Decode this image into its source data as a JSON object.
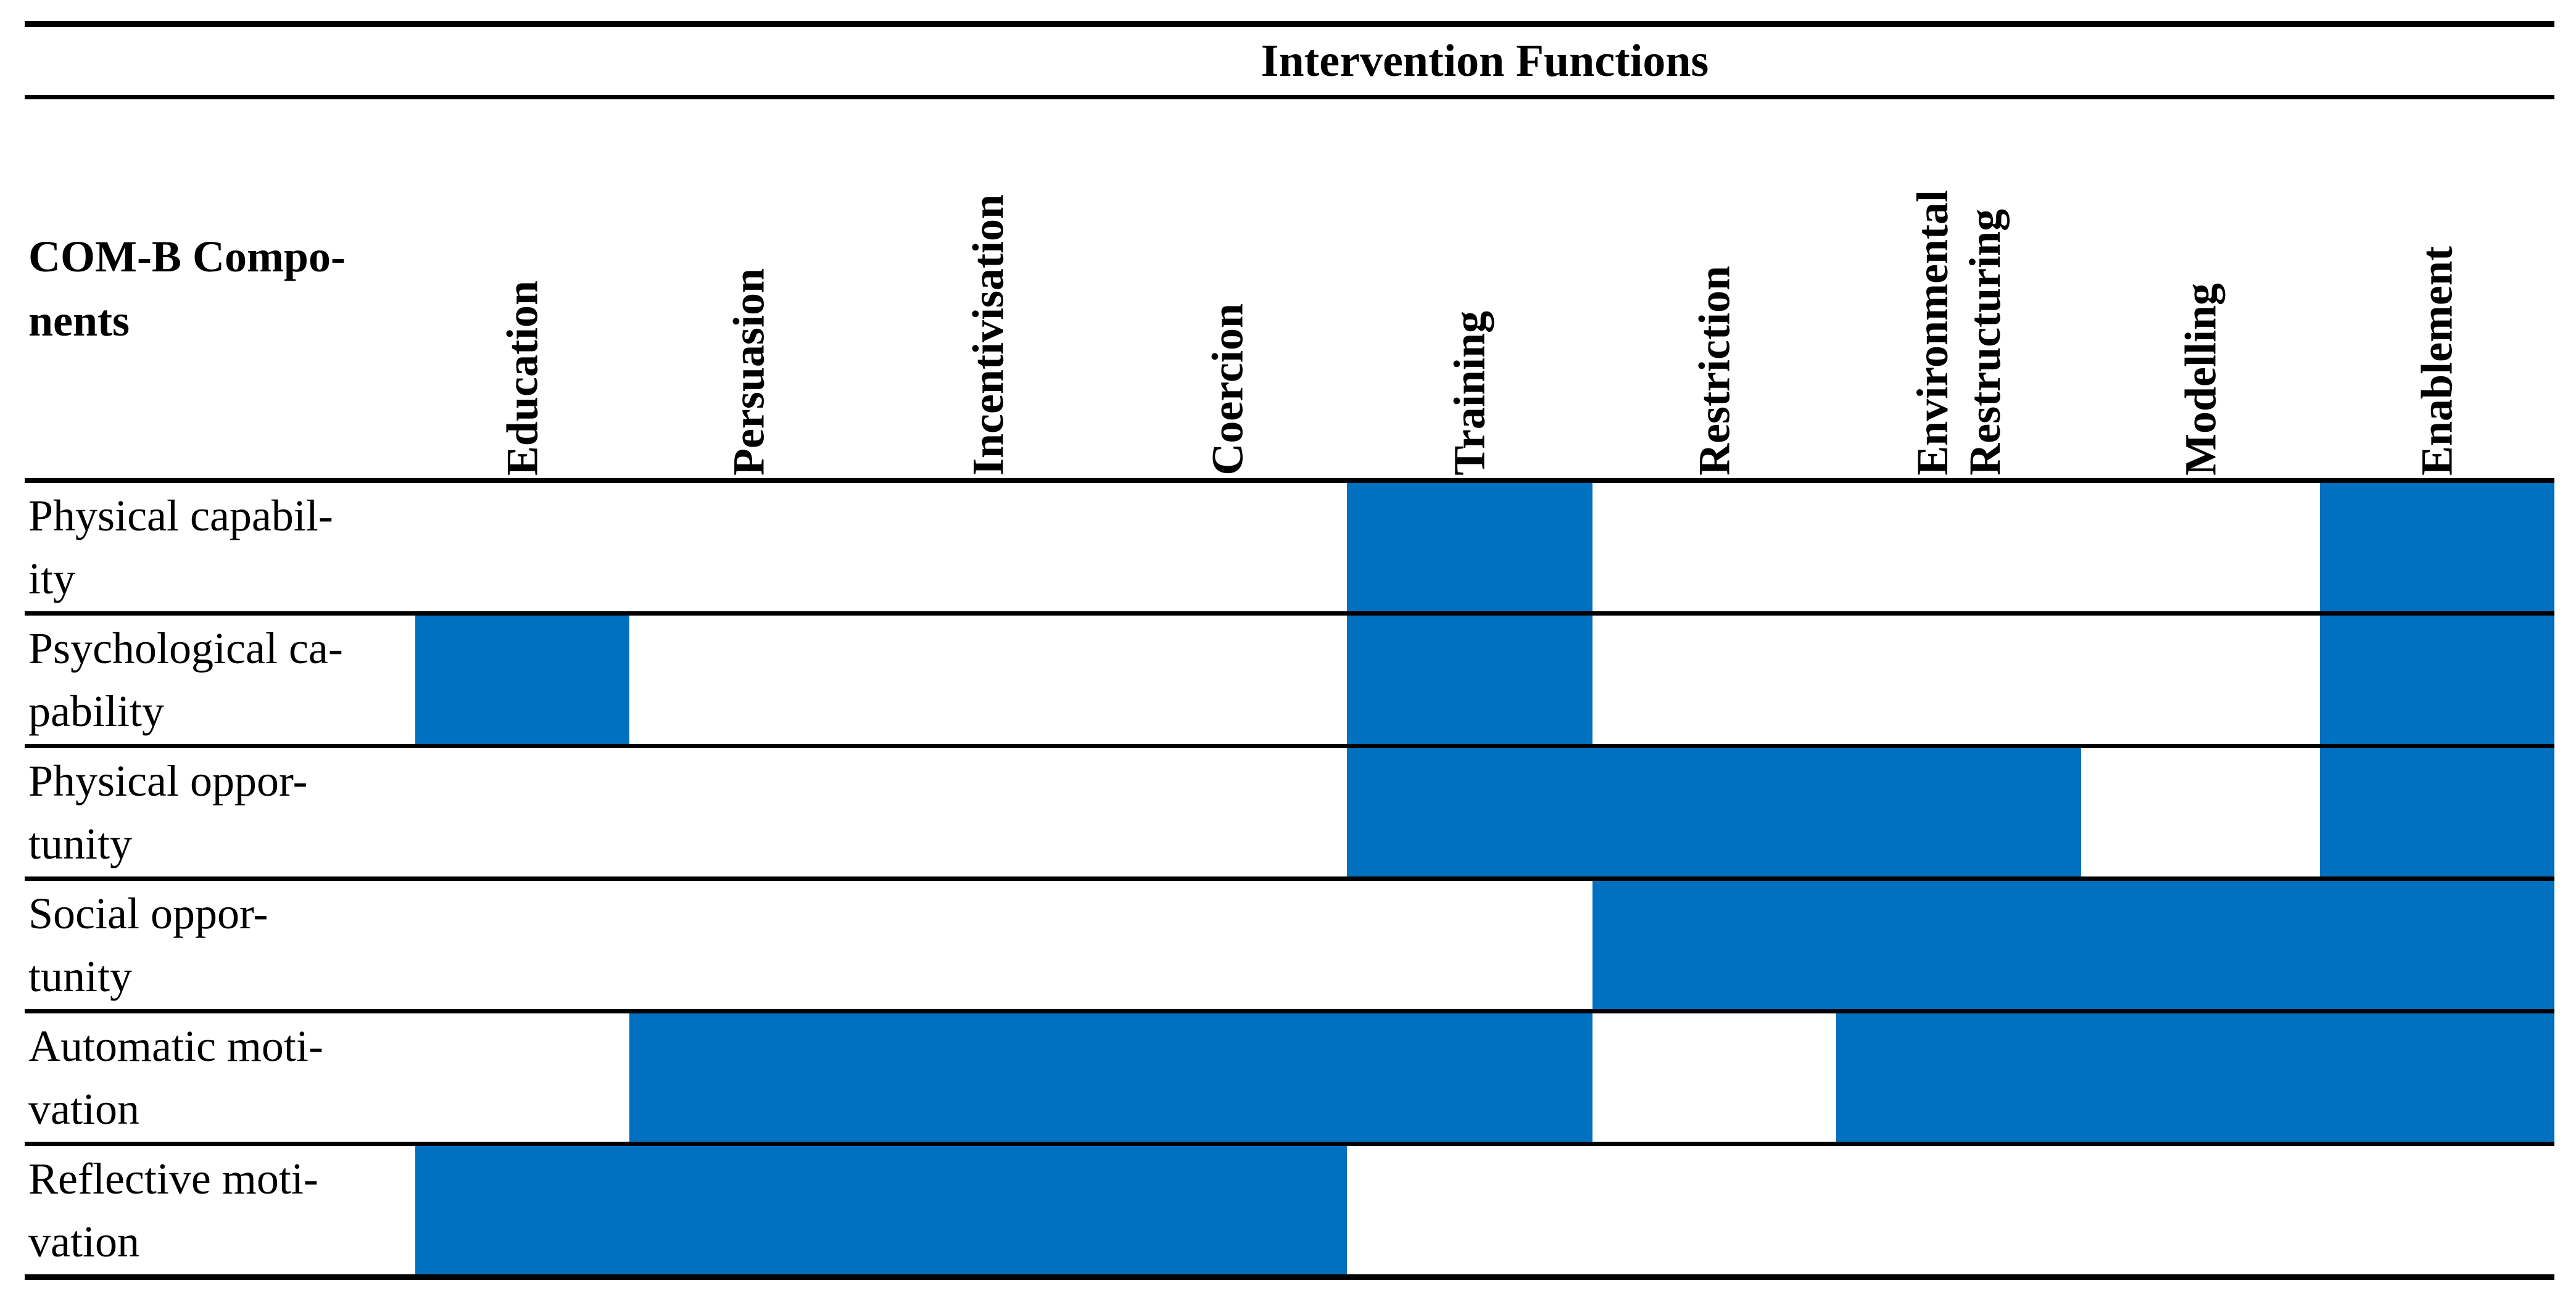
{
  "colors": {
    "cell_fill": "#0070C0",
    "rule": "#000000",
    "background": "#FFFFFF",
    "text": "#000000"
  },
  "table": {
    "title": "Intervention Functions",
    "corner_label_lines": [
      "COM-B Compo-",
      "nents"
    ],
    "columns": [
      {
        "id": "education",
        "lines": [
          "Education"
        ]
      },
      {
        "id": "persuasion",
        "lines": [
          "Persuasion"
        ]
      },
      {
        "id": "incentivisation",
        "lines": [
          "Incentivisation"
        ]
      },
      {
        "id": "coercion",
        "lines": [
          "Coercion"
        ]
      },
      {
        "id": "training",
        "lines": [
          "Training"
        ]
      },
      {
        "id": "restriction",
        "lines": [
          "Restriction"
        ]
      },
      {
        "id": "environmental-restructuring",
        "lines": [
          "Environmental",
          "Restructuring"
        ]
      },
      {
        "id": "modelling",
        "lines": [
          "Modelling"
        ]
      },
      {
        "id": "enablement",
        "lines": [
          "Enablement"
        ]
      }
    ],
    "rows": [
      {
        "label_lines": [
          "Physical capabil-",
          "ity"
        ],
        "cells": [
          false,
          false,
          false,
          false,
          true,
          false,
          false,
          false,
          true
        ]
      },
      {
        "label_lines": [
          "Psychological ca-",
          "pability"
        ],
        "cells": [
          true,
          false,
          false,
          false,
          true,
          false,
          false,
          false,
          true
        ]
      },
      {
        "label_lines": [
          "Physical oppor-",
          "tunity"
        ],
        "cells": [
          false,
          false,
          false,
          false,
          true,
          true,
          true,
          false,
          true
        ]
      },
      {
        "label_lines": [
          "Social oppor-",
          "tunity"
        ],
        "cells": [
          false,
          false,
          false,
          false,
          false,
          true,
          true,
          true,
          true
        ]
      },
      {
        "label_lines": [
          "Automatic moti-",
          "vation"
        ],
        "cells": [
          false,
          true,
          true,
          true,
          true,
          false,
          true,
          true,
          true
        ]
      },
      {
        "label_lines": [
          "Reflective moti-",
          "vation"
        ],
        "cells": [
          true,
          true,
          true,
          true,
          false,
          false,
          false,
          false,
          false
        ]
      }
    ]
  }
}
